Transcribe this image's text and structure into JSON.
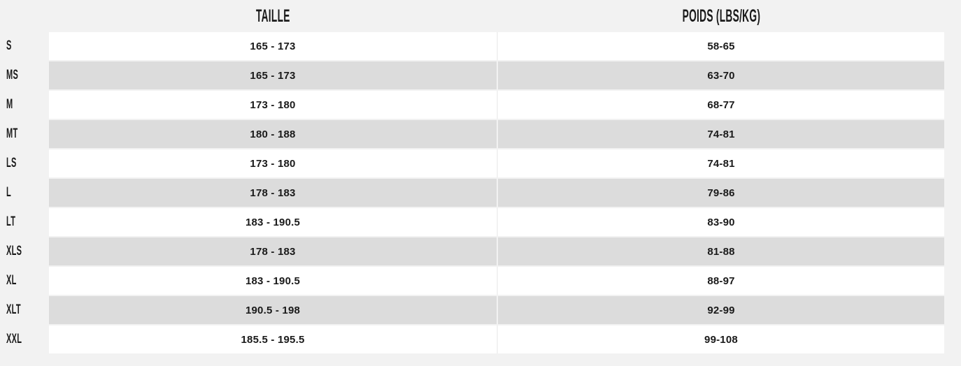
{
  "theme": {
    "page_bg": "#f2f2f2",
    "row_bg": "#ffffff",
    "row_alt_bg": "#dcdcdc",
    "text_color": "#1a1a1a"
  },
  "chart_data": {
    "type": "table",
    "title": "",
    "columns": [
      {
        "key": "height",
        "label": "TAILLE"
      },
      {
        "key": "weight",
        "label": "POIDS (LBS/KG)"
      }
    ],
    "rows": [
      {
        "size": "S",
        "height": "165 - 173",
        "weight": "58-65"
      },
      {
        "size": "MS",
        "height": "165 - 173",
        "weight": "63-70"
      },
      {
        "size": "M",
        "height": "173 - 180",
        "weight": "68-77"
      },
      {
        "size": "MT",
        "height": "180 - 188",
        "weight": "74-81"
      },
      {
        "size": "LS",
        "height": "173 - 180",
        "weight": "74-81"
      },
      {
        "size": "L",
        "height": "178 - 183",
        "weight": "79-86"
      },
      {
        "size": "LT",
        "height": "183 - 190.5",
        "weight": "83-90"
      },
      {
        "size": "XLS",
        "height": "178 - 183",
        "weight": "81-88"
      },
      {
        "size": "XL",
        "height": "183 - 190.5",
        "weight": "88-97"
      },
      {
        "size": "XLT",
        "height": "190.5 - 198",
        "weight": "92-99"
      },
      {
        "size": "XXL",
        "height": "185.5 - 195.5",
        "weight": "99-108"
      }
    ],
    "layout": {
      "zebra_striping": true,
      "first_row_background": "white",
      "row_header_column": "sizes (left, no background)"
    }
  }
}
